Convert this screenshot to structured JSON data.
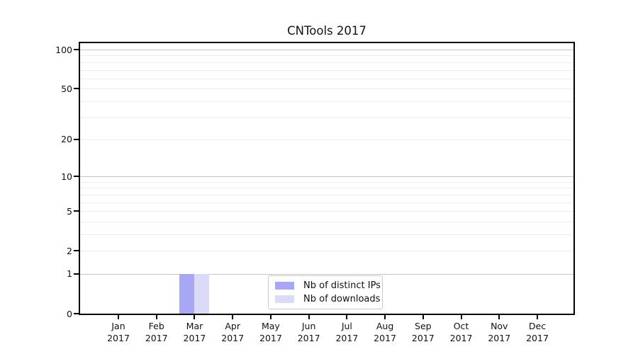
{
  "chart_data": {
    "type": "bar",
    "title": "CNTools 2017",
    "categories": [
      {
        "m": "Jan",
        "y": "2017"
      },
      {
        "m": "Feb",
        "y": "2017"
      },
      {
        "m": "Mar",
        "y": "2017"
      },
      {
        "m": "Apr",
        "y": "2017"
      },
      {
        "m": "May",
        "y": "2017"
      },
      {
        "m": "Jun",
        "y": "2017"
      },
      {
        "m": "Jul",
        "y": "2017"
      },
      {
        "m": "Aug",
        "y": "2017"
      },
      {
        "m": "Sep",
        "y": "2017"
      },
      {
        "m": "Oct",
        "y": "2017"
      },
      {
        "m": "Nov",
        "y": "2017"
      },
      {
        "m": "Dec",
        "y": "2017"
      }
    ],
    "series": [
      {
        "name": "Nb of distinct IPs",
        "color": "#a7a7f6",
        "values": [
          0,
          0,
          1,
          0,
          0,
          0,
          0,
          0,
          0,
          0,
          0,
          0
        ]
      },
      {
        "name": "Nb of downloads",
        "color": "#dbdbf9",
        "values": [
          0,
          0,
          1,
          0,
          0,
          0,
          0,
          0,
          0,
          0,
          0,
          0
        ]
      }
    ],
    "yscale": "log1p",
    "ylim": [
      0,
      112
    ],
    "ytick_values": [
      0,
      1,
      2,
      5,
      10,
      20,
      50,
      100
    ],
    "gridlines_major": [
      1,
      10,
      100
    ],
    "gridlines_minor": [
      2,
      3,
      4,
      5,
      6,
      7,
      8,
      9,
      20,
      30,
      40,
      50,
      60,
      70,
      80,
      90
    ],
    "grid": "on",
    "legend_position": "lower-center",
    "colors": {
      "major_grid": "#c3c3c3",
      "minor_grid": "#ececec",
      "spine": "#000000",
      "text": "#111111"
    }
  }
}
